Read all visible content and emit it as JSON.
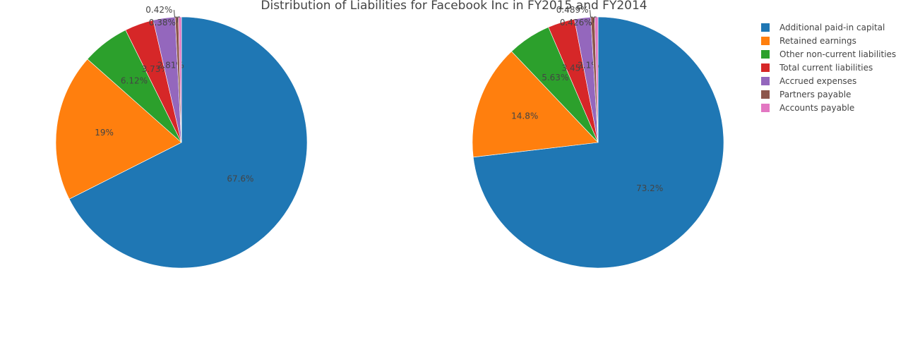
{
  "chart_data": {
    "type": "pie",
    "title": "Distribution of Liabilities for Facebook Inc in FY2015 and FY2014",
    "legend_position": "top-right",
    "labels": [
      "Additional paid-in capital",
      "Retained earnings",
      "Other non-current liabilities",
      "Total current liabilities",
      "Accrued expenses",
      "Partners payable",
      "Accounts payable"
    ],
    "colors": [
      "#1f77b4",
      "#ff7f0e",
      "#2ca02c",
      "#d62728",
      "#9467bd",
      "#8c564b",
      "#e377c2"
    ],
    "pies": [
      {
        "values": [
          67.6,
          19,
          6.12,
          3.73,
          2.81,
          0.42,
          0.38
        ],
        "text": [
          "67.6%",
          "19%",
          "6.12%",
          "3.73%",
          "2.81%",
          "0.42%",
          "0.38%"
        ]
      },
      {
        "values": [
          73.2,
          14.8,
          5.63,
          3.45,
          2.1,
          0.489,
          0.426
        ],
        "text": [
          "73.2%",
          "14.8%",
          "5.63%",
          "3.45%",
          "2.1%",
          "0.489%",
          "0.426%"
        ]
      }
    ]
  }
}
